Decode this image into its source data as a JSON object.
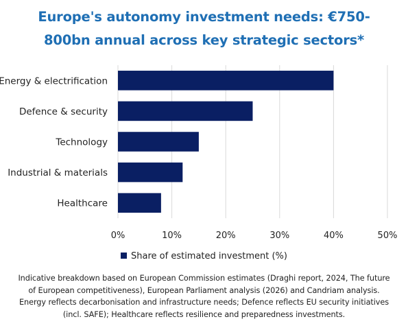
{
  "title_lines": [
    "Europe's autonomy investment needs: €750-",
    "800bn annual across key strategic sectors*"
  ],
  "legend_label": "Share of estimated investment (%)",
  "note_lines": [
    "Indicative breakdown based on European Commission estimates (Draghi report, 2024, The future",
    "of European competitiveness), European Parliament analysis (2026) and Candriam analysis.",
    "Energy reflects decarbonisation and infrastructure needs; Defence reflects EU security initiatives",
    "(incl. SAFE); Healthcare reflects resilience and preparedness investments."
  ],
  "colors": {
    "bar": "#0a1f63",
    "title": "#1f6fb4",
    "grid": "#d9d9d9"
  },
  "chart_data": {
    "type": "bar",
    "orientation": "horizontal",
    "categories": [
      "Energy & electrification",
      "Defence & security",
      "Technology",
      "Industrial & materials",
      "Healthcare"
    ],
    "values": [
      40,
      25,
      15,
      12,
      8
    ],
    "xlim": [
      0,
      50
    ],
    "xticks": [
      0,
      10,
      20,
      30,
      40,
      50
    ],
    "tick_labels": [
      "0%",
      "10%",
      "20%",
      "30%",
      "40%",
      "50%"
    ],
    "series_name": "Share of estimated investment (%)",
    "grid": true,
    "legend_position": "bottom"
  }
}
